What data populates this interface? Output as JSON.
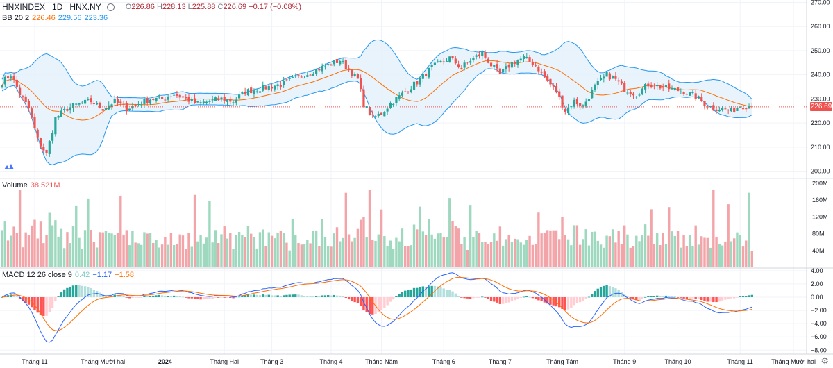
{
  "header": {
    "symbol": "HNXINDEX",
    "interval": "1D",
    "exchange": "HNX.NY",
    "open_label": "O",
    "open": "226.86",
    "high_label": "H",
    "high": "228.13",
    "low_label": "L",
    "low": "225.88",
    "close_label": "C",
    "close": "226.69",
    "change": "−0.17 (−0.08%)"
  },
  "bb_legend": {
    "name": "BB 20 2",
    "basis": "226.46",
    "upper": "229.56",
    "lower": "223.36"
  },
  "volume_legend": {
    "name": "Volume",
    "value": "38.521M"
  },
  "macd_legend": {
    "name": "MACD 12 26 close 9",
    "hist": "0.42",
    "macd": "−1.17",
    "signal": "−1.58"
  },
  "last_price_label": "226.69",
  "colors": {
    "up": "#26a69a",
    "down": "#ef5350",
    "vol_up": "#9ed8be",
    "vol_down": "#f2a4a8",
    "bb_basis": "#ff6d00",
    "bb_band": "#2196f3",
    "bb_fill": "#e3f0fb",
    "macd": "#2962ff",
    "signal": "#ff6d00",
    "grid": "#f0f3fa",
    "axis_text": "#131722"
  },
  "icons": [
    "tradingview-logo-icon",
    "eye-icon",
    "gear-icon"
  ],
  "chart_data": {
    "type": "candlestick",
    "price_axis": {
      "ticks": [
        200,
        210,
        220,
        230,
        240,
        250,
        260,
        270
      ],
      "range": [
        197,
        271
      ]
    },
    "volume_axis": {
      "ticks": [
        "40M",
        "80M",
        "120M",
        "160M",
        "200M"
      ],
      "tick_values": [
        40,
        80,
        120,
        160,
        200
      ],
      "range": [
        0,
        205
      ]
    },
    "macd_axis": {
      "ticks": [
        "−8.00",
        "−6.00",
        "−4.00",
        "−2.00",
        "0.00",
        "2.00",
        "4.00"
      ],
      "tick_values": [
        -8,
        -6,
        -4,
        -2,
        0,
        2,
        4
      ],
      "range": [
        -8.6,
        4.3
      ]
    },
    "x_labels": [
      {
        "label": "Tháng 11",
        "bar": 11
      },
      {
        "label": "Tháng Mười hai",
        "bar": 34
      },
      {
        "label": "2024",
        "bar": 55
      },
      {
        "label": "Tháng Hai",
        "bar": 75
      },
      {
        "label": "Tháng 3",
        "bar": 91
      },
      {
        "label": "Tháng 4",
        "bar": 111
      },
      {
        "label": "Tháng Năm",
        "bar": 128
      },
      {
        "label": "Tháng 6",
        "bar": 149
      },
      {
        "label": "Tháng 7",
        "bar": 168
      },
      {
        "label": "Tháng Tám",
        "bar": 189
      },
      {
        "label": "Tháng 9",
        "bar": 210
      },
      {
        "label": "Tháng 10",
        "bar": 228
      },
      {
        "label": "Tháng 11",
        "bar": 249
      },
      {
        "label": "Tháng Mười hai",
        "bar": 267
      }
    ],
    "close_anchors": [
      [
        0,
        237
      ],
      [
        3,
        240
      ],
      [
        6,
        232
      ],
      [
        9,
        226
      ],
      [
        12,
        213
      ],
      [
        15,
        207
      ],
      [
        18,
        222
      ],
      [
        22,
        226
      ],
      [
        26,
        228
      ],
      [
        30,
        229
      ],
      [
        34,
        226
      ],
      [
        38,
        229
      ],
      [
        42,
        226
      ],
      [
        46,
        228
      ],
      [
        50,
        230
      ],
      [
        54,
        230
      ],
      [
        58,
        232
      ],
      [
        62,
        230
      ],
      [
        66,
        228
      ],
      [
        70,
        229
      ],
      [
        74,
        230
      ],
      [
        78,
        229
      ],
      [
        82,
        233
      ],
      [
        86,
        234
      ],
      [
        90,
        235
      ],
      [
        94,
        236
      ],
      [
        98,
        238
      ],
      [
        102,
        240
      ],
      [
        106,
        242
      ],
      [
        110,
        244
      ],
      [
        114,
        246
      ],
      [
        117,
        242
      ],
      [
        120,
        238
      ],
      [
        122,
        228
      ],
      [
        125,
        222
      ],
      [
        128,
        224
      ],
      [
        131,
        228
      ],
      [
        135,
        232
      ],
      [
        140,
        237
      ],
      [
        145,
        243
      ],
      [
        148,
        245
      ],
      [
        151,
        247
      ],
      [
        155,
        243
      ],
      [
        158,
        246
      ],
      [
        162,
        249
      ],
      [
        165,
        244
      ],
      [
        168,
        240
      ],
      [
        172,
        245
      ],
      [
        176,
        247
      ],
      [
        180,
        244
      ],
      [
        183,
        239
      ],
      [
        187,
        233
      ],
      [
        190,
        225
      ],
      [
        193,
        229
      ],
      [
        196,
        227
      ],
      [
        200,
        235
      ],
      [
        204,
        240
      ],
      [
        207,
        238
      ],
      [
        210,
        234
      ],
      [
        214,
        232
      ],
      [
        218,
        236
      ],
      [
        222,
        235
      ],
      [
        226,
        234
      ],
      [
        230,
        233
      ],
      [
        234,
        231
      ],
      [
        237,
        228
      ],
      [
        240,
        226
      ],
      [
        243,
        226
      ],
      [
        246,
        225
      ],
      [
        249,
        227
      ],
      [
        252,
        227
      ],
      [
        253,
        226.69
      ]
    ],
    "bb_period": 20,
    "bb_mult": 2,
    "macd_fast": 12,
    "macd_slow": 26,
    "macd_signal": 9,
    "last_close": 226.69
  }
}
